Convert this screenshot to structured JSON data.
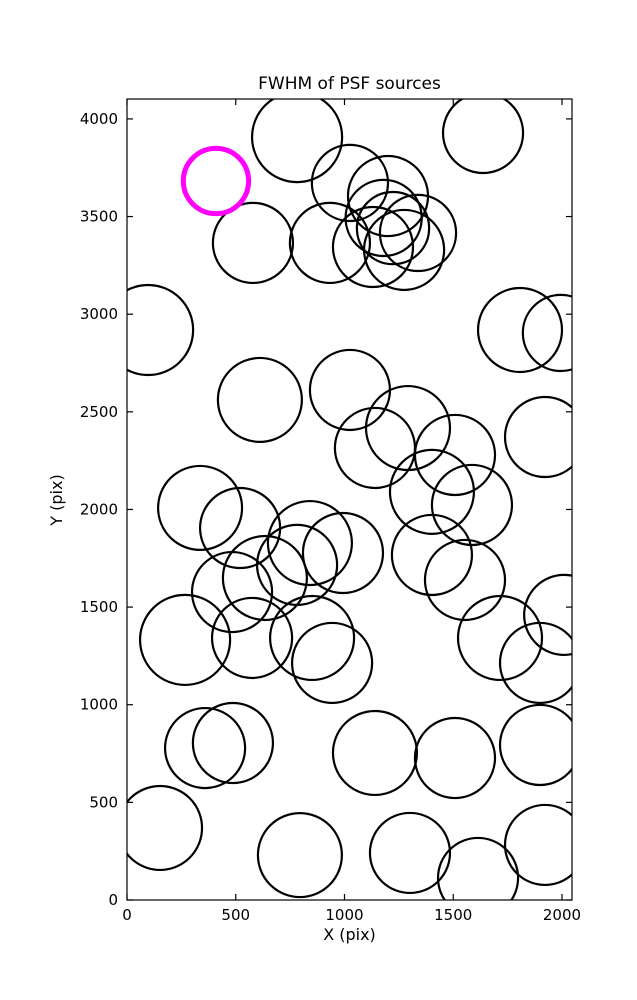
{
  "chart_data": {
    "type": "scatter",
    "title": "FWHM of PSF sources",
    "xlabel": "X (pix)",
    "ylabel": "Y (pix)",
    "xlim": [
      0,
      2046
    ],
    "ylim": [
      0,
      4102
    ],
    "xticks": [
      0,
      500,
      1000,
      1500,
      2000
    ],
    "yticks": [
      0,
      500,
      1000,
      1500,
      2000,
      2500,
      3000,
      3500,
      4000
    ],
    "grid": false,
    "legend": null,
    "marker": "open-circle",
    "circle_color": "#000000",
    "highlight_color": "#ff00ff",
    "circles": [
      [
        782,
        3907,
        207
      ],
      [
        1025,
        3672,
        175
      ],
      [
        1200,
        3605,
        184
      ],
      [
        1637,
        3928,
        184
      ],
      [
        579,
        3365,
        184
      ],
      [
        933,
        3365,
        184
      ],
      [
        1131,
        3344,
        184
      ],
      [
        1274,
        3329,
        184
      ],
      [
        1338,
        3416,
        175
      ],
      [
        1223,
        3441,
        166
      ],
      [
        1180,
        3493,
        175
      ],
      [
        1807,
        2919,
        193
      ],
      [
        1995,
        2904,
        175
      ],
      [
        97,
        2919,
        207
      ],
      [
        1025,
        2612,
        184
      ],
      [
        611,
        2561,
        193
      ],
      [
        1140,
        2315,
        184
      ],
      [
        1292,
        2417,
        193
      ],
      [
        1508,
        2279,
        184
      ],
      [
        1922,
        2371,
        184
      ],
      [
        1402,
        2090,
        193
      ],
      [
        1586,
        2023,
        184
      ],
      [
        336,
        2008,
        193
      ],
      [
        520,
        1905,
        184
      ],
      [
        841,
        1828,
        193
      ],
      [
        993,
        1777,
        184
      ],
      [
        782,
        1716,
        184
      ],
      [
        634,
        1649,
        193
      ],
      [
        483,
        1577,
        184
      ],
      [
        1402,
        1767,
        184
      ],
      [
        1554,
        1639,
        184
      ],
      [
        267,
        1332,
        207
      ],
      [
        575,
        1342,
        184
      ],
      [
        851,
        1342,
        193
      ],
      [
        943,
        1214,
        184
      ],
      [
        1715,
        1342,
        193
      ],
      [
        1899,
        1214,
        184
      ],
      [
        2010,
        1460,
        184
      ],
      [
        359,
        778,
        184
      ],
      [
        487,
        804,
        184
      ],
      [
        1140,
        753,
        193
      ],
      [
        1508,
        727,
        184
      ],
      [
        1899,
        794,
        184
      ],
      [
        152,
        369,
        193
      ],
      [
        795,
        230,
        193
      ],
      [
        1301,
        241,
        184
      ],
      [
        1614,
        113,
        184
      ],
      [
        1922,
        282,
        184
      ]
    ],
    "highlight": {
      "x": 409,
      "y": 3682,
      "r": 150
    }
  }
}
